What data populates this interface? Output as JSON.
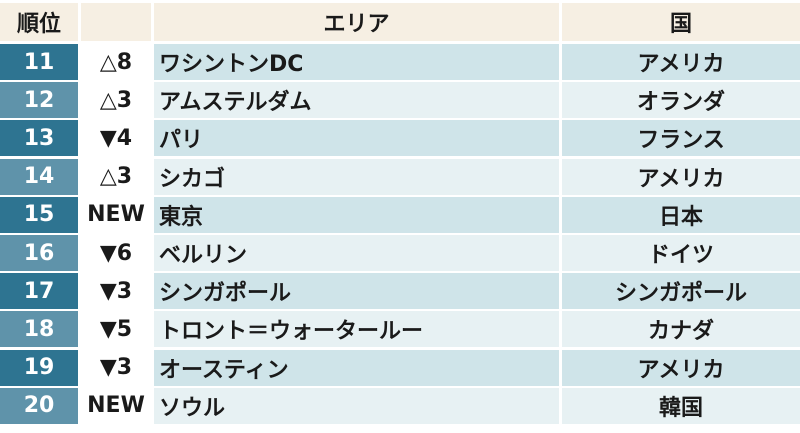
{
  "header": {
    "rank": "順位",
    "change": "",
    "area": "エリア",
    "country": "国"
  },
  "colors": {
    "header_bg": "#f6efe3",
    "rank_dark": "#2e7491",
    "rank_light": "#5f93aa",
    "row_dark": "#cfe4e9",
    "row_light": "#e7f1f3",
    "change_bg": "#ffffff"
  },
  "rows": [
    {
      "rank": "11",
      "change": "△8",
      "area": "ワシントンDC",
      "country": "アメリカ"
    },
    {
      "rank": "12",
      "change": "△3",
      "area": "アムステルダム",
      "country": "オランダ"
    },
    {
      "rank": "13",
      "change": "▼4",
      "area": "パリ",
      "country": "フランス"
    },
    {
      "rank": "14",
      "change": "△3",
      "area": "シカゴ",
      "country": "アメリカ"
    },
    {
      "rank": "15",
      "change": "NEW",
      "area": "東京",
      "country": "日本"
    },
    {
      "rank": "16",
      "change": "▼6",
      "area": "ベルリン",
      "country": "ドイツ"
    },
    {
      "rank": "17",
      "change": "▼3",
      "area": "シンガポール",
      "country": "シンガポール"
    },
    {
      "rank": "18",
      "change": "▼5",
      "area": "トロント＝ウォータールー",
      "country": "カナダ"
    },
    {
      "rank": "19",
      "change": "▼3",
      "area": "オースティン",
      "country": "アメリカ"
    },
    {
      "rank": "20",
      "change": "NEW",
      "area": "ソウル",
      "country": "韓国"
    }
  ]
}
